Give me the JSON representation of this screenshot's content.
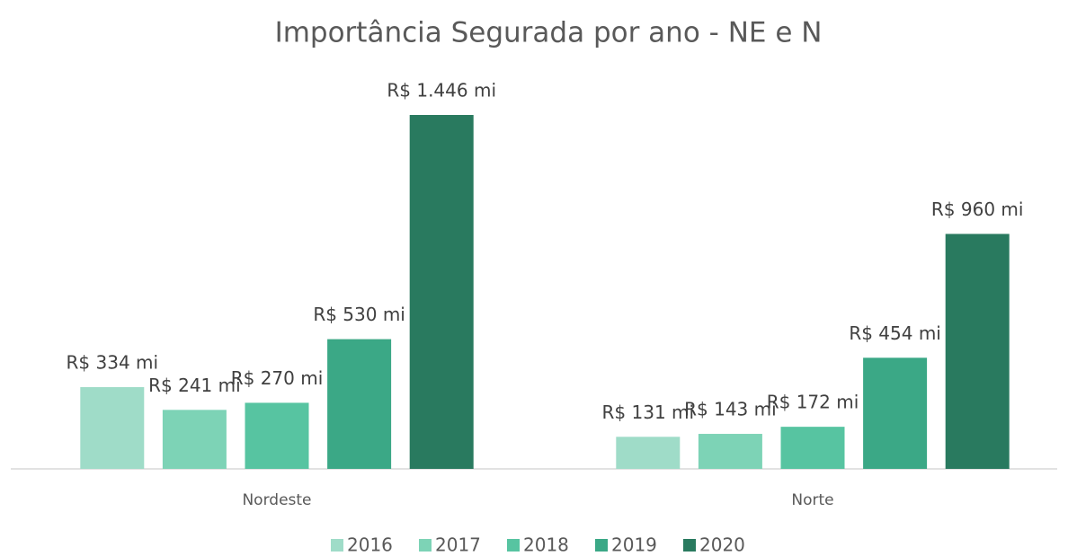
{
  "chart_data": {
    "type": "bar",
    "title": "Importância Segurada por ano - NE e N",
    "categories": [
      "Nordeste",
      "Norte"
    ],
    "series": [
      {
        "name": "2016",
        "color": "#9fdcc8",
        "values": [
          334,
          131
        ],
        "value_labels": [
          "R$ 334 mi",
          "R$ 131 mi"
        ]
      },
      {
        "name": "2017",
        "color": "#7dd3b6",
        "values": [
          241,
          143
        ],
        "value_labels": [
          "R$ 241 mi",
          "R$ 143 mi"
        ]
      },
      {
        "name": "2018",
        "color": "#57c4a1",
        "values": [
          270,
          172
        ],
        "value_labels": [
          "R$ 270 mi",
          "R$ 172 mi"
        ]
      },
      {
        "name": "2019",
        "color": "#3ba886",
        "values": [
          530,
          454
        ],
        "value_labels": [
          "R$ 530 mi",
          "R$ 454 mi"
        ]
      },
      {
        "name": "2020",
        "color": "#297a5f",
        "values": [
          1446,
          960
        ],
        "value_labels": [
          "R$ 1.446 mi",
          "R$ 960 mi"
        ]
      }
    ],
    "legend": "bottom"
  }
}
